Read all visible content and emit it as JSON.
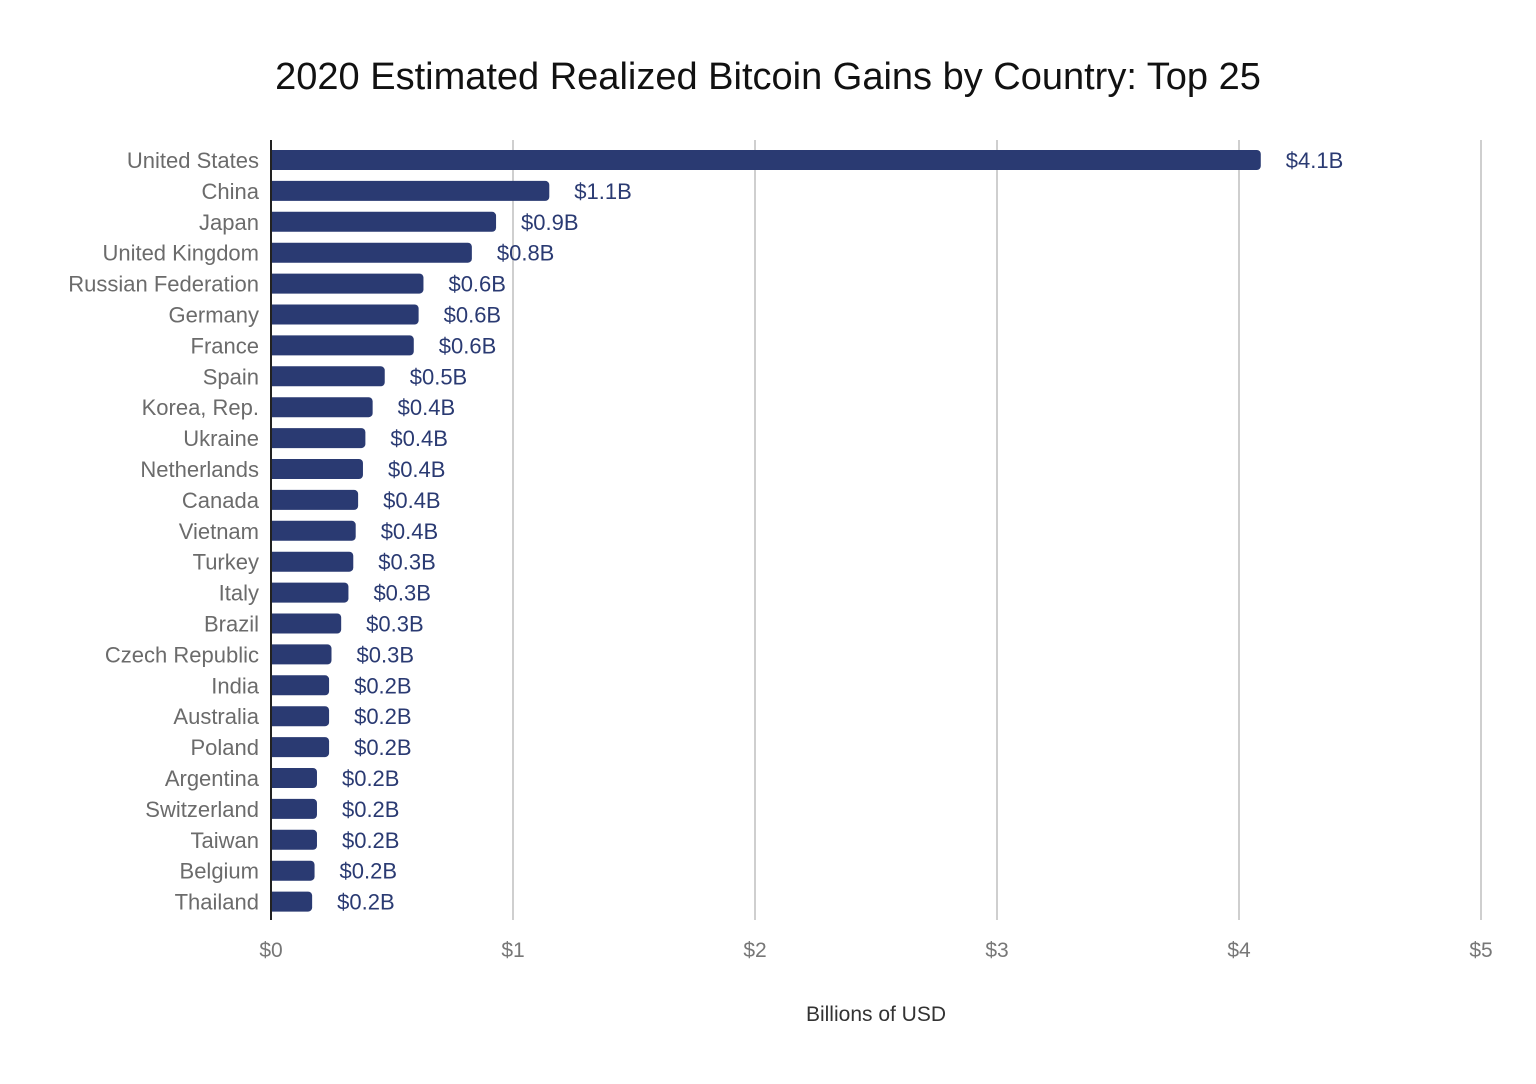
{
  "chart_data": {
    "type": "bar",
    "orientation": "horizontal",
    "title": "2020 Estimated Realized Bitcoin Gains by Country: Top 25",
    "xlabel": "Billions of USD",
    "ylabel": "",
    "xlim": [
      0,
      5
    ],
    "x_ticks": [
      "$0",
      "$1",
      "$2",
      "$3",
      "$4",
      "$5"
    ],
    "grid": "vertical",
    "bar_color": "#2a3a72",
    "categories": [
      "United States",
      "China",
      "Japan",
      "United Kingdom",
      "Russian Federation",
      "Germany",
      "France",
      "Spain",
      "Korea, Rep.",
      "Ukraine",
      "Netherlands",
      "Canada",
      "Vietnam",
      "Turkey",
      "Italy",
      "Brazil",
      "Czech Republic",
      "India",
      "Australia",
      "Poland",
      "Argentina",
      "Switzerland",
      "Taiwan",
      "Belgium",
      "Thailand"
    ],
    "values": [
      4.09,
      1.15,
      0.93,
      0.83,
      0.63,
      0.61,
      0.59,
      0.47,
      0.42,
      0.39,
      0.38,
      0.36,
      0.35,
      0.34,
      0.32,
      0.29,
      0.25,
      0.24,
      0.24,
      0.24,
      0.19,
      0.19,
      0.19,
      0.18,
      0.17
    ],
    "data_labels": [
      "$4.1B",
      "$1.1B",
      "$0.9B",
      "$0.8B",
      "$0.6B",
      "$0.6B",
      "$0.6B",
      "$0.5B",
      "$0.4B",
      "$0.4B",
      "$0.4B",
      "$0.4B",
      "$0.4B",
      "$0.3B",
      "$0.3B",
      "$0.3B",
      "$0.3B",
      "$0.2B",
      "$0.2B",
      "$0.2B",
      "$0.2B",
      "$0.2B",
      "$0.2B",
      "$0.2B",
      "$0.2B"
    ]
  }
}
